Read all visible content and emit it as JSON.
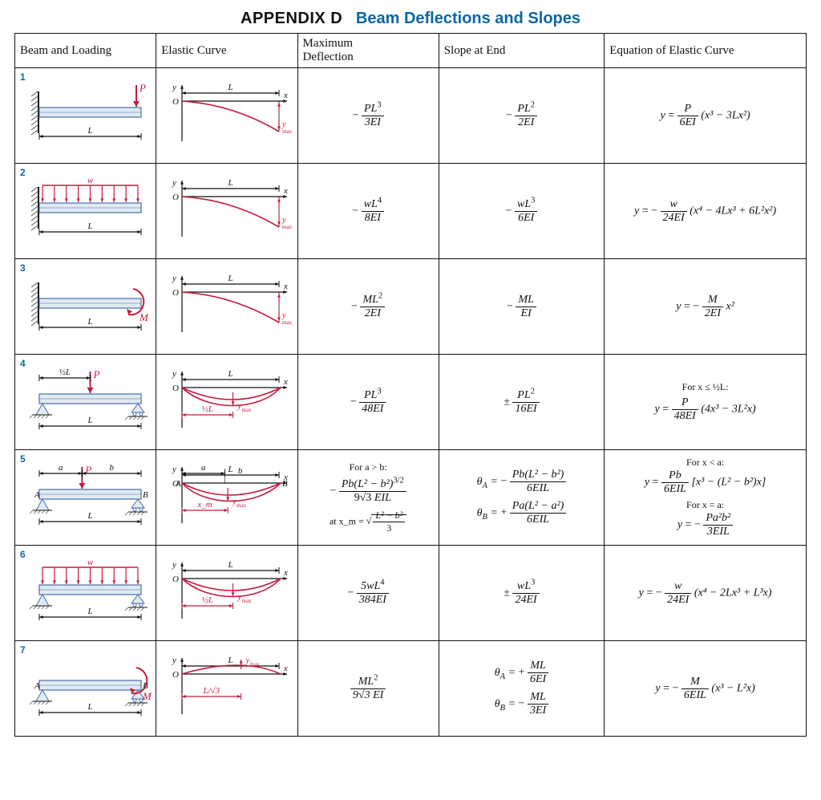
{
  "title": {
    "appendix": "APPENDIX D",
    "subject": "Beam Deflections and Slopes"
  },
  "columns": {
    "c1": "Beam and Loading",
    "c2": "Elastic Curve",
    "c3a": "Maximum",
    "c3b": "Deflection",
    "c4": "Slope at End",
    "c5": "Equation of Elastic Curve"
  },
  "colors": {
    "heading_blue": "#0a66a8",
    "accent_red": "#c81b3a",
    "beam_fill": "#dfeaf3",
    "beam_stroke": "#4a6ea9",
    "wall_hatch": "#333333",
    "curve_red": "#c81b3a",
    "axis": "#111111",
    "support_fill": "#dfeaf3",
    "support_line": "#4a6ea9",
    "ymax_red": "#c81b3a"
  },
  "geom": {
    "diagram_w": 165,
    "diagram_h": 100,
    "beam_thickness": 12,
    "axis_font": 11,
    "label_font": 11
  },
  "cantilever_cases": [
    "1",
    "2",
    "3"
  ],
  "simply_supported_cases": [
    "4",
    "5",
    "6",
    "7"
  ],
  "rows": [
    {
      "n": "1",
      "type": "cantilever",
      "load": "point_end",
      "load_label": "P",
      "defl_num": "PL",
      "defl_exp": "3",
      "defl_den": "3EI",
      "defl_sign": "-",
      "slope": [
        {
          "sign": "-",
          "num": "PL",
          "exp": "2",
          "den": "2EI"
        }
      ],
      "eq_pre": "",
      "eq": "y = P / (6EI) · (x³ − 3Lx²)",
      "eq_num": "P",
      "eq_den": "6EI",
      "eq_tail": "(x³ − 3Lx²)"
    },
    {
      "n": "2",
      "type": "cantilever",
      "load": "udl",
      "load_label": "w",
      "defl_num": "wL",
      "defl_exp": "4",
      "defl_den": "8EI",
      "defl_sign": "-",
      "slope": [
        {
          "sign": "-",
          "num": "wL",
          "exp": "3",
          "den": "6EI"
        }
      ],
      "eq_sign": "-",
      "eq_num": "w",
      "eq_den": "24EI",
      "eq_tail": "(x⁴ − 4Lx³ + 6L²x²)"
    },
    {
      "n": "3",
      "type": "cantilever",
      "load": "moment_end",
      "load_label": "M",
      "defl_num": "ML",
      "defl_exp": "2",
      "defl_den": "2EI",
      "defl_sign": "-",
      "slope": [
        {
          "sign": "-",
          "num": "ML",
          "exp": "",
          "den": "EI"
        }
      ],
      "eq_sign": "-",
      "eq_num": "M",
      "eq_den": "2EI",
      "eq_tail": "x²"
    },
    {
      "n": "4",
      "type": "simple",
      "load": "point_mid",
      "load_label": "P",
      "half": true,
      "defl_num": "PL",
      "defl_exp": "3",
      "defl_den": "48EI",
      "defl_sign": "-",
      "slope": [
        {
          "sign": "±",
          "num": "PL",
          "exp": "2",
          "den": "16EI"
        }
      ],
      "eq_pre": "For x ≤ ½L:",
      "eq_num": "P",
      "eq_den": "48EI",
      "eq_tail": "(4x³ − 3L²x)"
    },
    {
      "n": "5",
      "type": "simple",
      "load": "point_ab",
      "load_label": "P",
      "ab": true,
      "defl_special": {
        "cond": "For a > b:",
        "num": "Pb(L² − b²)",
        "exp": "3/2",
        "den": "9√3 EIL",
        "at": "at x_m =",
        "at_rad": "(L² − b²)/3"
      },
      "slope": [
        {
          "lhs": "θ_A =",
          "sign": "-",
          "num": "Pb(L² − b²)",
          "den": "6EIL"
        },
        {
          "lhs": "θ_B =",
          "sign": "+",
          "num": "Pa(L² − a²)",
          "den": "6EIL"
        }
      ],
      "eq_rows": [
        {
          "pre": "For x < a:",
          "eq": "y = Pb/(6EIL) · [x³ − (L² − b²)x]",
          "num": "Pb",
          "den": "6EIL",
          "tail": "[x³ − (L² − b²)x]"
        },
        {
          "pre": "For x = a:",
          "eq": "y = − Pa²b²/(3EIL)",
          "sign": "-",
          "num": "Pa²b²",
          "den": "3EIL",
          "tail": ""
        }
      ]
    },
    {
      "n": "6",
      "type": "simple",
      "load": "udl",
      "load_label": "w",
      "half": true,
      "defl_num": "5wL",
      "defl_exp": "4",
      "defl_den": "384EI",
      "defl_sign": "-",
      "slope": [
        {
          "sign": "±",
          "num": "wL",
          "exp": "3",
          "den": "24EI"
        }
      ],
      "eq_sign": "-",
      "eq_num": "w",
      "eq_den": "24EI",
      "eq_tail": "(x⁴ − 2Lx³ + L³x)"
    },
    {
      "n": "7",
      "type": "simple",
      "load": "moment_end",
      "load_label": "M",
      "xmax_loc": "L/√3",
      "defl_num": "ML",
      "defl_exp": "2",
      "defl_den": "9√3 EI",
      "defl_sign": "",
      "slope": [
        {
          "lhs": "θ_A =",
          "sign": "+",
          "num": "ML",
          "den": "6EI"
        },
        {
          "lhs": "θ_B =",
          "sign": "-",
          "num": "ML",
          "den": "3EI"
        }
      ],
      "eq_sign": "-",
      "eq_num": "M",
      "eq_den": "6EIL",
      "eq_tail": "(x³ − L²x)"
    }
  ],
  "labels": {
    "y": "y",
    "x": "x",
    "O": "O",
    "L": "L",
    "halfL": "½L",
    "ymax": "y_max",
    "xm": "x_m",
    "A": "A",
    "B": "B",
    "a": "a",
    "b": "b"
  }
}
